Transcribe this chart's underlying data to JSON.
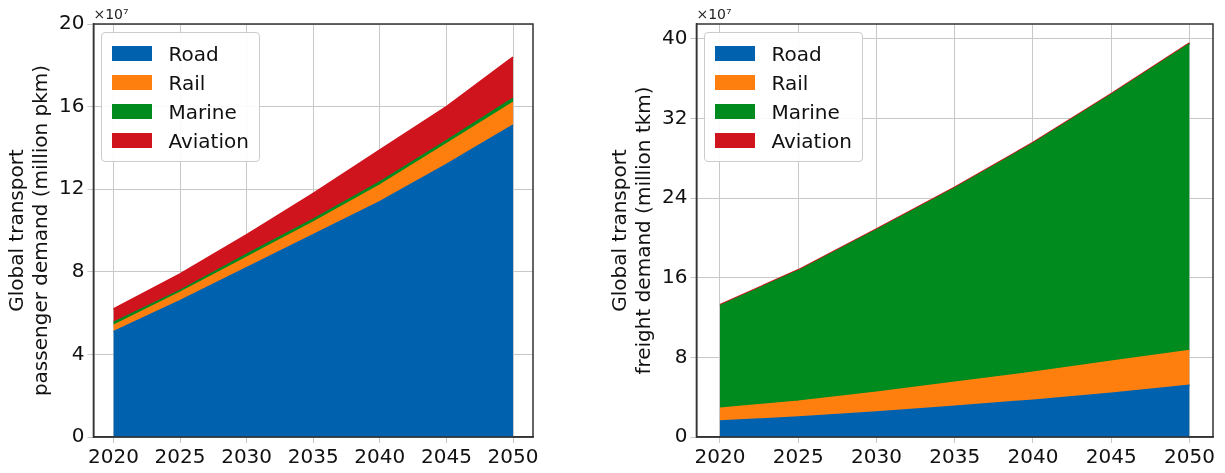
{
  "chart_data": [
    {
      "type": "area",
      "stacked": true,
      "ylabel": "Global transport\npassenger demand (million pkm)",
      "annotations": [
        "×10⁷"
      ],
      "x": [
        2020,
        2025,
        2030,
        2035,
        2040,
        2045,
        2050
      ],
      "series": [
        {
          "name": "Road",
          "color": "#0062ae",
          "values": [
            5.1,
            6.6,
            8.2,
            9.8,
            11.4,
            13.2,
            15.1
          ]
        },
        {
          "name": "Rail",
          "color": "#ff7f0e",
          "values": [
            0.3,
            0.4,
            0.5,
            0.6,
            0.8,
            1.0,
            1.1
          ]
        },
        {
          "name": "Marine",
          "color": "#008b1f",
          "values": [
            0.15,
            0.1,
            0.15,
            0.15,
            0.15,
            0.15,
            0.2
          ]
        },
        {
          "name": "Aviation",
          "color": "#d0141e",
          "values": [
            0.65,
            0.8,
            0.95,
            1.25,
            1.55,
            1.65,
            2.0
          ]
        }
      ],
      "xlim": [
        2018.5,
        2051.5
      ],
      "xticks": [
        2020,
        2025,
        2030,
        2035,
        2040,
        2045,
        2050
      ],
      "ylim": [
        0,
        20
      ],
      "yticks": [
        0,
        4,
        8,
        12,
        16,
        20
      ],
      "grid": true,
      "legend": "top left"
    },
    {
      "type": "area",
      "stacked": true,
      "ylabel": "Global transport\nfreight demand (million tkm)",
      "annotations": [
        "×10⁷"
      ],
      "x": [
        2020,
        2025,
        2030,
        2035,
        2040,
        2045,
        2050
      ],
      "series": [
        {
          "name": "Road",
          "color": "#0062ae",
          "values": [
            1.6,
            2.0,
            2.5,
            3.1,
            3.7,
            4.4,
            5.2
          ]
        },
        {
          "name": "Rail",
          "color": "#ff7f0e",
          "values": [
            1.3,
            1.6,
            2.0,
            2.4,
            2.8,
            3.2,
            3.5
          ]
        },
        {
          "name": "Marine",
          "color": "#008b1f",
          "values": [
            10.3,
            13.1,
            16.3,
            19.5,
            23.0,
            26.8,
            30.8
          ]
        },
        {
          "name": "Aviation",
          "color": "#d0141e",
          "values": [
            0.1,
            0.1,
            0.1,
            0.1,
            0.1,
            0.1,
            0.1
          ]
        }
      ],
      "xlim": [
        2018.5,
        2051.5
      ],
      "xticks": [
        2020,
        2025,
        2030,
        2035,
        2040,
        2045,
        2050
      ],
      "ylim": [
        0,
        41.5
      ],
      "yticks": [
        0,
        8,
        16,
        24,
        32,
        40
      ],
      "grid": true,
      "legend": "top left"
    }
  ]
}
